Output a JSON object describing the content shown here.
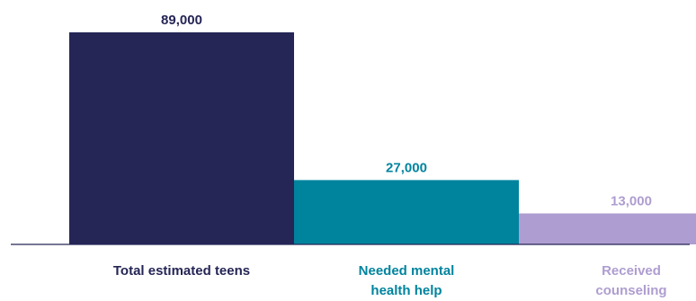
{
  "chart_data": {
    "type": "bar",
    "categories": [
      [
        "Total estimated teens"
      ],
      [
        "Needed mental",
        "health help"
      ],
      [
        "Received",
        "counseling"
      ]
    ],
    "values": [
      89000,
      27000,
      13000
    ],
    "value_labels": [
      "89,000",
      "27,000",
      "13,000"
    ],
    "ylim": [
      0,
      89000
    ],
    "grid": false,
    "legend": "none",
    "colors": {
      "bars": [
        "#252556",
        "#00849E",
        "#AE9DD0"
      ],
      "value_labels": [
        "#252556",
        "#00849E",
        "#AE9DD0"
      ],
      "category_labels": [
        "#252556",
        "#00849E",
        "#AE9DD0"
      ],
      "baseline": "#252556"
    }
  }
}
